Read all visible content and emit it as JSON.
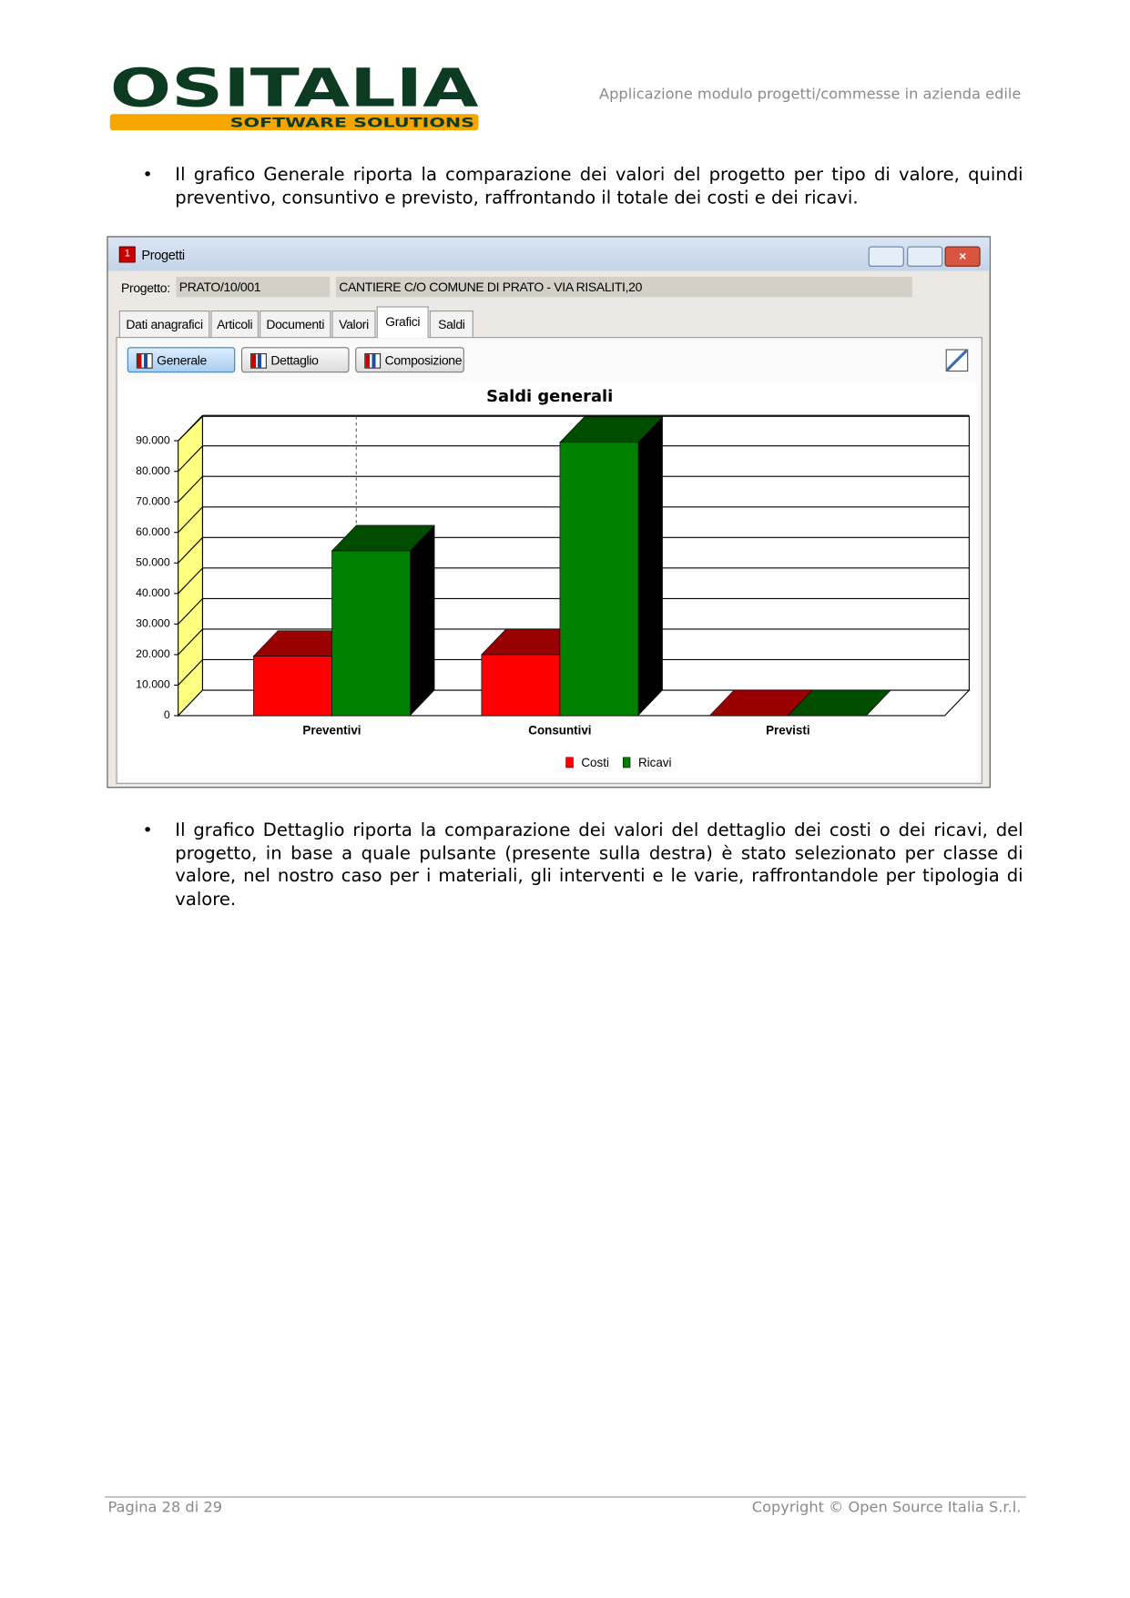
{
  "header": {
    "logo": "OSITALIA",
    "tagline": "SOFTWARE SOLUTIONS",
    "title": "Applicazione modulo progetti/commesse in azienda edile"
  },
  "bullets": [
    "Il grafico Generale riporta la comparazione dei valori del progetto per tipo di valore, quindi preventivo, consuntivo e previsto, raffrontando il totale dei costi e dei ricavi.",
    "Il grafico Dettaglio riporta la comparazione dei valori del dettaglio dei costi o dei ricavi, del progetto, in base a quale pulsante (presente sulla destra) è stato selezionato per classe di valore, nel nostro caso per i materiali, gli interventi e le varie, raffrontandole per tipologia di valore."
  ],
  "window": {
    "title": "Progetti",
    "project_label": "Progetto:",
    "project_code": "PRATO/10/001",
    "project_name": "CANTIERE C/O COMUNE DI PRATO - VIA RISALITI,20",
    "tabs": [
      "Dati anagrafici",
      "Articoli",
      "Documenti",
      "Valori",
      "Grafici",
      "Saldi"
    ],
    "buttons": [
      "Generale",
      "Dettaglio",
      "Composizione"
    ]
  },
  "chart_data": {
    "type": "bar3d",
    "title": "Saldi generali",
    "categories": [
      "Preventivi",
      "Consuntivi",
      "Previsti"
    ],
    "series": [
      {
        "name": "Costi",
        "color": "#ff0000",
        "values": [
          19500,
          20000,
          0
        ]
      },
      {
        "name": "Ricavi",
        "color": "#008000",
        "values": [
          54000,
          89500,
          0
        ]
      }
    ],
    "ylim": [
      0,
      90000
    ],
    "yticks": [
      0,
      {
        "value": 10000,
        "label": "10.000"
      },
      {
        "value": 20000,
        "label": "20.000"
      },
      {
        "value": 30000,
        "label": "30.000"
      },
      {
        "value": 40000,
        "label": "40.000"
      },
      {
        "value": 50000,
        "label": "50.000"
      },
      {
        "value": 60000,
        "label": "60.000"
      },
      {
        "value": 70000,
        "label": "70.000"
      },
      {
        "value": 80000,
        "label": "80.000"
      },
      {
        "value": 90000,
        "label": "90.000"
      }
    ],
    "grid": true,
    "legend": "bottom"
  },
  "footer": {
    "page": "Pagina 28 di 29",
    "copyright": "Copyright © Open Source Italia S.r.l."
  }
}
